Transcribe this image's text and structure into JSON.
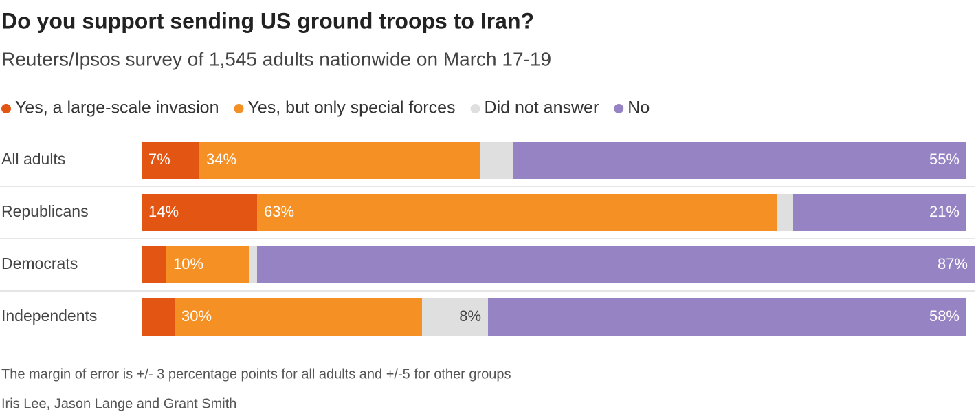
{
  "chart_data": {
    "type": "stacked-bar",
    "orientation": "horizontal",
    "title": "Do you support sending US ground troops to Iran?",
    "subtitle": "Reuters/Ipsos survey of 1,545 adults nationwide on March 17-19",
    "categories": [
      "All adults",
      "Republicans",
      "Democrats",
      "Independents"
    ],
    "series": [
      {
        "name": "Yes, a large-scale invasion",
        "color": "#e35512",
        "values": [
          7,
          14,
          3,
          4
        ],
        "value_labels": [
          "7%",
          "14%",
          null,
          null
        ]
      },
      {
        "name": "Yes, but only special forces",
        "color": "#f59025",
        "values": [
          34,
          63,
          10,
          30
        ],
        "value_labels": [
          "34%",
          "63%",
          "10%",
          "30%"
        ]
      },
      {
        "name": "Did not answer",
        "color": "#dfdfdf",
        "values": [
          4,
          2,
          1,
          8
        ],
        "value_labels": [
          null,
          null,
          null,
          "8%"
        ]
      },
      {
        "name": "No",
        "color": "#9683c3",
        "values": [
          55,
          21,
          87,
          58
        ],
        "value_labels": [
          "55%",
          "21%",
          "87%",
          "58%"
        ]
      }
    ],
    "xlim": [
      0,
      100
    ],
    "notes": [
      "The margin of error is +/- 3 percentage points for all adults and +/-5 for other groups",
      "Iris Lee, Jason Lange and Grant Smith"
    ]
  }
}
